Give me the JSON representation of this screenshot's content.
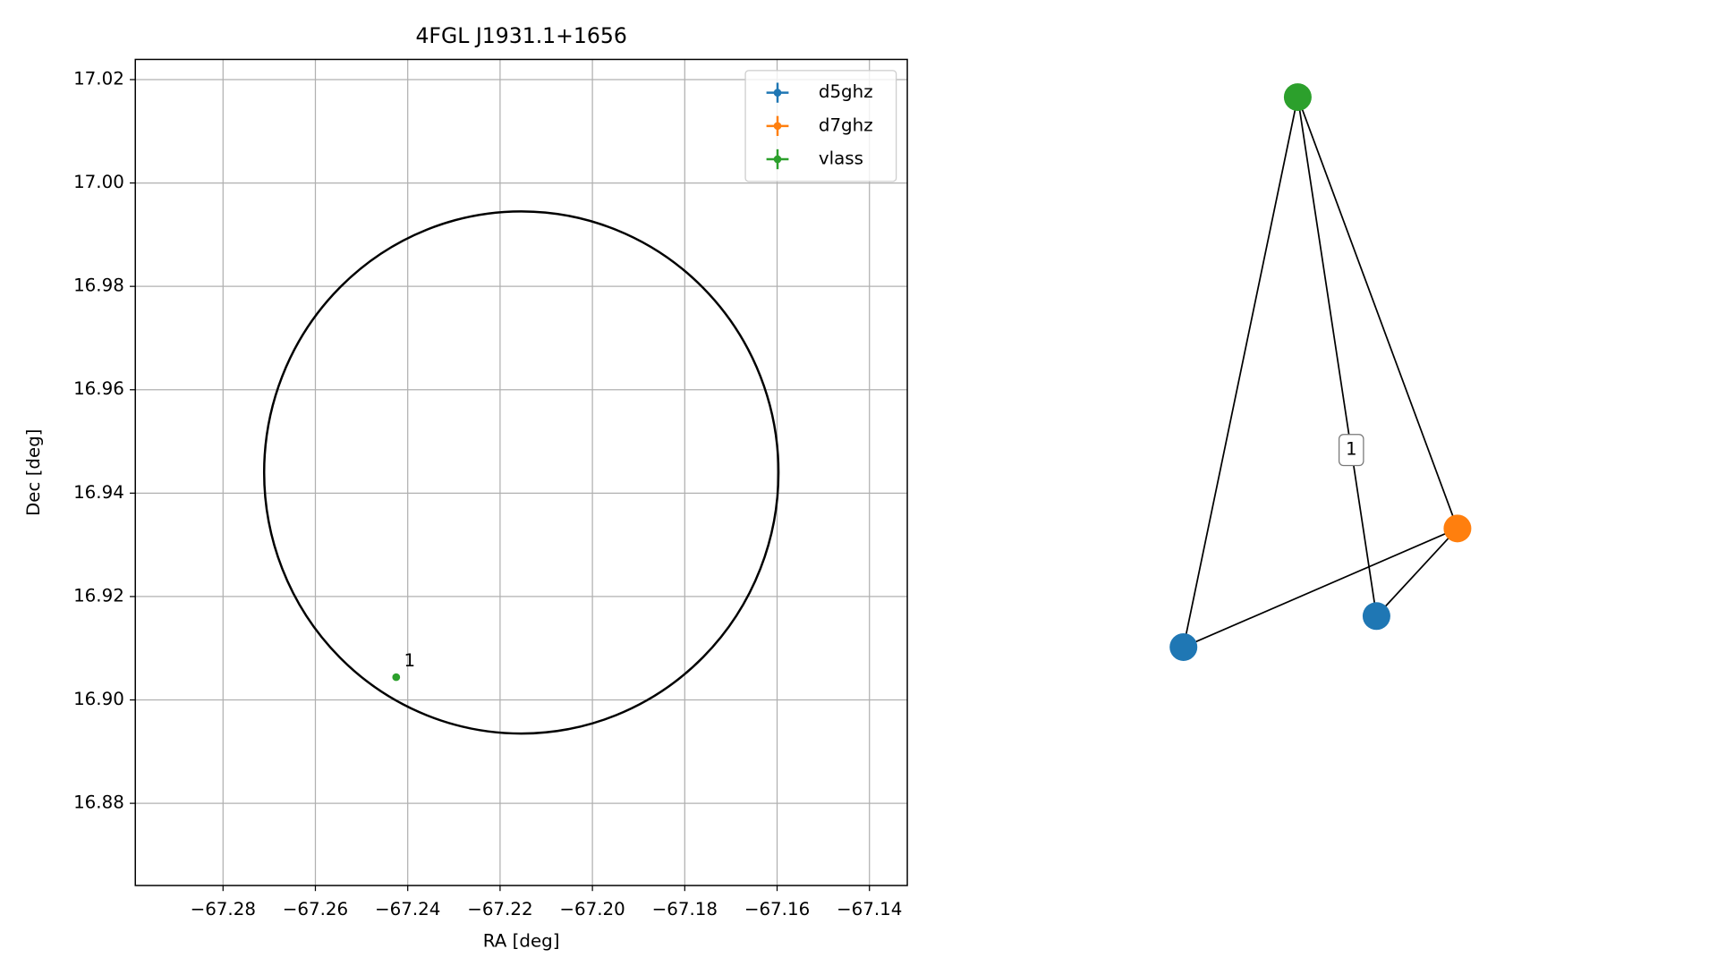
{
  "chart_data": [
    {
      "type": "scatter",
      "title": "4FGL J1931.1+1656",
      "xlabel": "RA [deg]",
      "ylabel": "Dec [deg]",
      "xlim": [
        -67.299,
        -67.1318
      ],
      "ylim": [
        16.8641,
        17.0239
      ],
      "xticks": [
        {
          "value": -67.28,
          "label": "−67.28"
        },
        {
          "value": -67.26,
          "label": "−67.26"
        },
        {
          "value": -67.24,
          "label": "−67.24"
        },
        {
          "value": -67.22,
          "label": "−67.22"
        },
        {
          "value": -67.2,
          "label": "−67.20"
        },
        {
          "value": -67.18,
          "label": "−67.18"
        },
        {
          "value": -67.16,
          "label": "−67.16"
        },
        {
          "value": -67.14,
          "label": "−67.14"
        }
      ],
      "yticks": [
        16.88,
        {
          "value": 16.9,
          "label": "16.90"
        },
        16.92,
        16.94,
        16.96,
        16.98,
        {
          "value": 17.0,
          "label": "17.00"
        },
        17.02
      ],
      "grid": true,
      "legend": "upper right",
      "region": {
        "x_center": -67.2154,
        "y_center": 16.944,
        "x_radius": 0.0557,
        "y_radius": 0.0505,
        "color": "#000000"
      },
      "series": [
        {
          "name": "d5ghz",
          "color": "#1f77b4",
          "x": [],
          "values": [],
          "point_labels": []
        },
        {
          "name": "d7ghz",
          "color": "#ff7f0e",
          "x": [],
          "values": [],
          "point_labels": []
        },
        {
          "name": "vlass",
          "color": "#2ca02c",
          "x": [
            -67.2425
          ],
          "values": [
            16.9044
          ],
          "point_labels": [
            "1"
          ]
        }
      ]
    },
    {
      "type": "network",
      "nodes": [
        {
          "color": "#2ca02c"
        },
        {
          "color": "#ff7f0e"
        },
        {
          "color": "#1f77b4"
        },
        {
          "color": "#1f77b4"
        }
      ],
      "edges": [
        {
          "source": 0,
          "target": 2
        },
        {
          "source": 0,
          "target": 3,
          "label": "1"
        },
        {
          "source": 0,
          "target": 1
        },
        {
          "source": 1,
          "target": 2
        },
        {
          "source": 1,
          "target": 3
        }
      ]
    }
  ]
}
